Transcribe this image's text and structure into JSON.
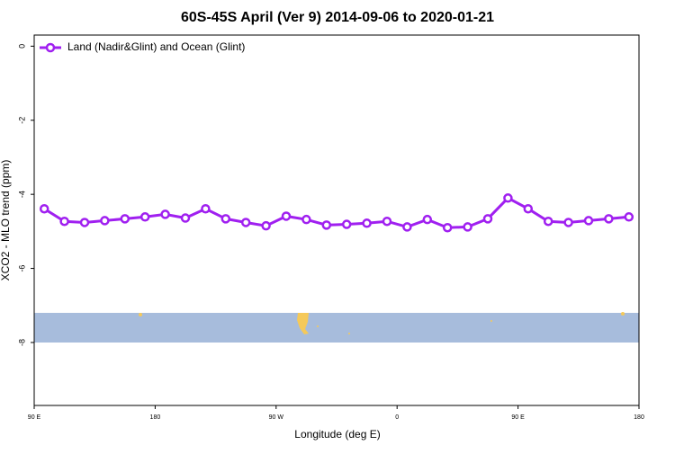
{
  "chart_data": {
    "type": "line",
    "title": "60S-45S April (Ver 9)   2014-09-06 to 2020-01-21",
    "xlabel": "Longitude (deg E)",
    "ylabel": "XCO2 - MLO trend (ppm)",
    "xlim": [
      90,
      540
    ],
    "xticks": [
      {
        "value": 90,
        "label": "90 E"
      },
      180,
      {
        "value": 270,
        "label": "90 W"
      },
      {
        "value": 360,
        "label": "0"
      },
      {
        "value": 450,
        "label": "90 E"
      },
      {
        "value": 540,
        "label": "180"
      }
    ],
    "ylim": [
      -9.7,
      0.3
    ],
    "yticks": [
      0,
      -2,
      -4,
      -6,
      -8
    ],
    "legend": "top-left",
    "series": [
      {
        "name": "Land (Nadir&Glint) and Ocean (Glint)",
        "color": "#a020f0",
        "x": [
          97.5,
          112.5,
          127.5,
          142.5,
          157.5,
          172.5,
          187.5,
          202.5,
          217.5,
          232.5,
          247.5,
          262.5,
          277.5,
          292.5,
          307.5,
          322.5,
          337.5,
          352.5,
          367.5,
          382.5,
          397.5,
          412.5,
          427.5,
          442.5,
          457.5,
          472.5,
          487.5,
          502.5,
          517.5,
          532.5
        ],
        "values": [
          -4.39,
          -4.73,
          -4.76,
          -4.71,
          -4.66,
          -4.61,
          -4.54,
          -4.64,
          -4.39,
          -4.66,
          -4.76,
          -4.85,
          -4.59,
          -4.68,
          -4.83,
          -4.81,
          -4.78,
          -4.73,
          -4.88,
          -4.68,
          -4.9,
          -4.88,
          -4.66,
          -4.1,
          -4.39,
          -4.73,
          -4.76,
          -4.71,
          -4.66,
          -4.61
        ]
      }
    ]
  }
}
